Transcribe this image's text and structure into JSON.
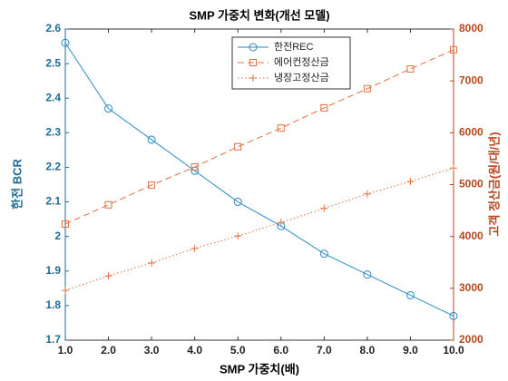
{
  "chart_data": {
    "type": "line",
    "title": "SMP 가중치 변화(개선 모델)",
    "xlabel": "SMP 가중치(배)",
    "ylabel": "한전 BCR",
    "y2label": "고객 정산금(원/대/년)",
    "x": [
      1,
      2,
      3,
      4,
      5,
      6,
      7,
      8,
      9,
      10
    ],
    "xlim": [
      1,
      10
    ],
    "xticks": [
      {
        "value": 1,
        "label": "1.0"
      },
      {
        "value": 2,
        "label": "2.0"
      },
      {
        "value": 3,
        "label": "3.0"
      },
      {
        "value": 4,
        "label": "4.0"
      },
      {
        "value": 5,
        "label": "5.0"
      },
      {
        "value": 6,
        "label": "6.0"
      },
      {
        "value": 7,
        "label": "7.0"
      },
      {
        "value": 8,
        "label": "8.0"
      },
      {
        "value": 9,
        "label": "9.0"
      },
      {
        "value": 10,
        "label": "10.0"
      }
    ],
    "ylim": [
      1.7,
      2.6
    ],
    "yticks": [
      1.7,
      1.8,
      1.9,
      2,
      2.1,
      2.2,
      2.3,
      2.4,
      2.5,
      2.6
    ],
    "y2lim": [
      2000,
      8000
    ],
    "y2ticks": [
      2000,
      3000,
      4000,
      5000,
      6000,
      7000,
      8000
    ],
    "ycolor": "#1f6b94",
    "y2color": "#b4471f",
    "series": [
      {
        "name": "한전REC",
        "color": "#2b8ac6",
        "marker": "circle",
        "linestyle": "solid",
        "values": [
          2.56,
          2.37,
          2.28,
          2.19,
          2.1,
          2.03,
          1.95,
          1.89,
          1.83,
          1.77
        ]
      },
      {
        "name": "에어컨정산금",
        "color": "#e0703f",
        "marker": "square",
        "linestyle": "dashed",
        "axis": "y2",
        "values": [
          4240,
          4610,
          4990,
          5340,
          5730,
          6090,
          6480,
          6850,
          7230,
          7600
        ]
      },
      {
        "name": "냉장고정산금",
        "color": "#e0703f",
        "marker": "plus",
        "linestyle": "dotted",
        "axis": "y2",
        "values": [
          2960,
          3240,
          3490,
          3770,
          4010,
          4270,
          4540,
          4820,
          5060,
          5320
        ]
      }
    ]
  }
}
